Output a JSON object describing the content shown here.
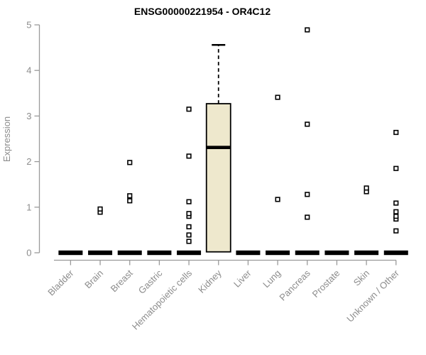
{
  "chart_data": {
    "type": "boxplot",
    "title": "ENSG00000221954 - OR4C12",
    "xlabel": "",
    "ylabel": "Expression",
    "ylim": [
      0,
      5
    ],
    "yticks": [
      0,
      1,
      2,
      3,
      4,
      5
    ],
    "grid": false,
    "legend": false,
    "categories": [
      "Bladder",
      "Brain",
      "Breast",
      "Gastric",
      "Hematopoietic cells",
      "Kidney",
      "Liver",
      "Lung",
      "Pancreas",
      "Prostate",
      "Skin",
      "Unknown / Other"
    ],
    "boxes": [
      {
        "category": "Bladder",
        "q1": 0,
        "median": 0,
        "q3": 0,
        "whisker_low": 0,
        "whisker_high": 0,
        "outliers": []
      },
      {
        "category": "Brain",
        "q1": 0,
        "median": 0,
        "q3": 0,
        "whisker_low": 0,
        "whisker_high": 0,
        "outliers": [
          0.89,
          0.96
        ]
      },
      {
        "category": "Breast",
        "q1": 0,
        "median": 0,
        "q3": 0,
        "whisker_low": 0,
        "whisker_high": 0,
        "outliers": [
          1.14,
          1.25,
          1.98
        ]
      },
      {
        "category": "Gastric",
        "q1": 0,
        "median": 0,
        "q3": 0,
        "whisker_low": 0,
        "whisker_high": 0,
        "outliers": []
      },
      {
        "category": "Hematopoietic cells",
        "q1": 0,
        "median": 0,
        "q3": 0,
        "whisker_low": 0,
        "whisker_high": 0,
        "outliers": [
          0.25,
          0.39,
          0.57,
          0.8,
          0.86,
          1.12,
          2.12,
          3.15
        ]
      },
      {
        "category": "Kidney",
        "q1": 0.02,
        "median": 2.31,
        "q3": 3.27,
        "whisker_low": 0.02,
        "whisker_high": 4.56,
        "outliers": []
      },
      {
        "category": "Liver",
        "q1": 0,
        "median": 0,
        "q3": 0,
        "whisker_low": 0,
        "whisker_high": 0,
        "outliers": []
      },
      {
        "category": "Lung",
        "q1": 0,
        "median": 0,
        "q3": 0,
        "whisker_low": 0,
        "whisker_high": 0,
        "outliers": [
          1.17,
          3.41
        ]
      },
      {
        "category": "Pancreas",
        "q1": 0,
        "median": 0,
        "q3": 0,
        "whisker_low": 0,
        "whisker_high": 0,
        "outliers": [
          0.78,
          1.28,
          2.82,
          4.89
        ]
      },
      {
        "category": "Prostate",
        "q1": 0,
        "median": 0,
        "q3": 0,
        "whisker_low": 0,
        "whisker_high": 0,
        "outliers": []
      },
      {
        "category": "Skin",
        "q1": 0,
        "median": 0,
        "q3": 0,
        "whisker_low": 0,
        "whisker_high": 0,
        "outliers": [
          1.34,
          1.42
        ]
      },
      {
        "category": "Unknown / Other",
        "q1": 0,
        "median": 0,
        "q3": 0,
        "whisker_low": 0,
        "whisker_high": 0,
        "outliers": [
          0.48,
          0.74,
          0.8,
          0.9,
          1.09,
          1.85,
          2.64
        ]
      }
    ],
    "colors": {
      "box_fill": "#EEE8CD",
      "box_stroke": "#000000",
      "median": "#000000",
      "whisker": "#000000",
      "outlier_stroke": "#000000",
      "outlier_fill": "#ffffff",
      "axis_line": "#9a9a9a",
      "tick_text": "#8c8c8c",
      "title_text": "#000000",
      "background": "#ffffff"
    }
  }
}
